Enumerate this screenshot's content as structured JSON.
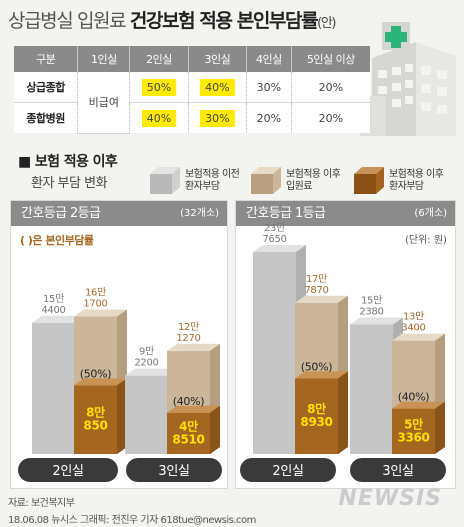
{
  "title": {
    "part1": "상급병실 입원료 ",
    "bold": "건강보험 적용 본인부담률",
    "suffix": "(안)"
  },
  "table": {
    "headers": [
      "구분",
      "1인실",
      "2인실",
      "3인실",
      "4인실",
      "5인실 이상"
    ],
    "rows": [
      {
        "label": "상급종합",
        "c1": "비급여",
        "c2": "50%",
        "c3": "40%",
        "c4": "30%",
        "c5": "20%"
      },
      {
        "label": "종합병원",
        "c2": "40%",
        "c3": "30%",
        "c4": "20%",
        "c5": "20%"
      }
    ],
    "highlight_color": "#ffea00"
  },
  "legend": {
    "title": "■ 보험 적용 이후",
    "subtitle": "환자 부담 변화",
    "items": [
      {
        "line1": "보험적용 이전",
        "line2": "환자부담",
        "color": "#c9c9c9"
      },
      {
        "line1": "보험적용 이후",
        "line2": "입원료",
        "color": "#cbb69a"
      },
      {
        "line1": "보험적용 이후",
        "line2": "환자부담",
        "color": "#a2641e"
      }
    ]
  },
  "panels": [
    {
      "title": "간호등급 2등급",
      "count": "(32개소)"
    },
    {
      "title": "간호등급 1등급",
      "count": "(6개소)",
      "unit": "(단위: 원)"
    }
  ],
  "note": "( )은 본인부담률",
  "chart_data": [
    {
      "type": "bar",
      "title": "간호등급 2등급",
      "categories": [
        "2인실",
        "3인실"
      ],
      "series": [
        {
          "name": "보험적용 이전 환자부담",
          "values": [
            154400,
            92200
          ],
          "labels": [
            "15만\n4400",
            "9만\n2200"
          ]
        },
        {
          "name": "보험적용 이후 입원료",
          "values": [
            161700,
            121270
          ],
          "labels": [
            "16만\n1700",
            "12만\n1270"
          ]
        },
        {
          "name": "보험적용 이후 환자부담",
          "values": [
            80850,
            48510
          ],
          "labels": [
            "8만\n850",
            "4만\n8510"
          ]
        }
      ],
      "rate_labels": [
        "(50%)",
        "(40%)"
      ]
    },
    {
      "type": "bar",
      "title": "간호등급 1등급",
      "categories": [
        "2인실",
        "3인실"
      ],
      "ylabel": "원",
      "series": [
        {
          "name": "보험적용 이전 환자부담",
          "values": [
            237650,
            152380
          ],
          "labels": [
            "23만\n7650",
            "15만\n2380"
          ]
        },
        {
          "name": "보험적용 이후 입원료",
          "values": [
            177870,
            133400
          ],
          "labels": [
            "17만\n7870",
            "13만\n3400"
          ]
        },
        {
          "name": "보험적용 이후 환자부담",
          "values": [
            88930,
            53360
          ],
          "labels": [
            "8만\n8930",
            "5만\n3360"
          ]
        }
      ],
      "rate_labels": [
        "(50%)",
        "(40%)"
      ]
    }
  ],
  "footer": {
    "source": "자료: 보건복지부",
    "credit": "18.06.08 뉴시스 그래픽: 전진우 기자 618tue@newsis.com",
    "logo": "NEWSIS"
  }
}
